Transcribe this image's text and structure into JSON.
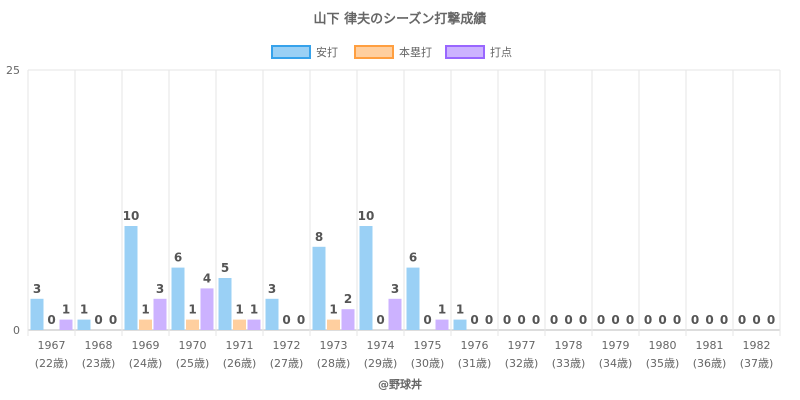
{
  "chart_data": {
    "type": "bar",
    "title": "山下 律夫のシーズン打撃成績",
    "categories": [
      "1967",
      "1968",
      "1969",
      "1970",
      "1971",
      "1972",
      "1973",
      "1974",
      "1975",
      "1976",
      "1977",
      "1978",
      "1979",
      "1980",
      "1981",
      "1982"
    ],
    "sub_labels": [
      "(22歳)",
      "(23歳)",
      "(24歳)",
      "(25歳)",
      "(26歳)",
      "(27歳)",
      "(28歳)",
      "(29歳)",
      "(30歳)",
      "(31歳)",
      "(32歳)",
      "(33歳)",
      "(34歳)",
      "(35歳)",
      "(36歳)",
      "(37歳)"
    ],
    "series": [
      {
        "name": "安打",
        "color": "#9ad0f5",
        "border": "#36a2eb",
        "values": [
          3,
          1,
          10,
          6,
          5,
          3,
          8,
          10,
          6,
          1,
          0,
          0,
          0,
          0,
          0,
          0
        ]
      },
      {
        "name": "本塁打",
        "color": "#ffcf9f",
        "border": "#ff9f40",
        "values": [
          0,
          0,
          1,
          1,
          1,
          0,
          1,
          0,
          0,
          0,
          0,
          0,
          0,
          0,
          0,
          0
        ]
      },
      {
        "name": "打点",
        "color": "#ccb2ff",
        "border": "#9966ff",
        "values": [
          1,
          0,
          3,
          4,
          1,
          0,
          2,
          3,
          1,
          0,
          0,
          0,
          0,
          0,
          0,
          0
        ]
      }
    ],
    "ylim": [
      0,
      25
    ],
    "yticks": [
      "0",
      "25"
    ],
    "grid": true,
    "legend_position": "top",
    "credit": "@野球丼"
  }
}
